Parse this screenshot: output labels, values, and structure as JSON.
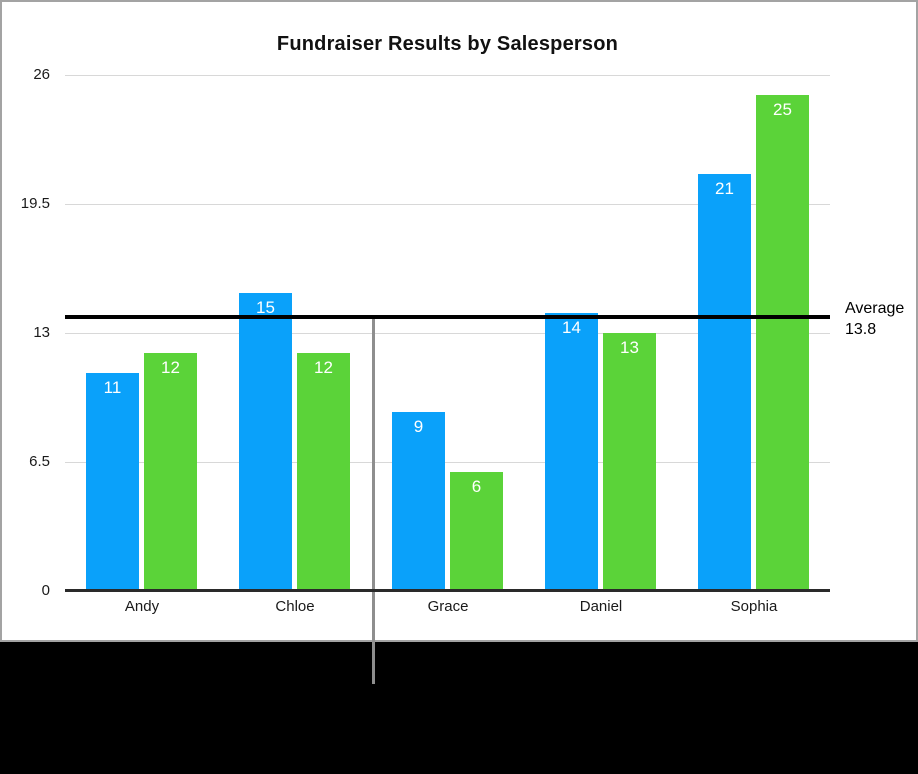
{
  "window": {
    "background_color": "#000000",
    "card_background": "#ffffff",
    "card_border_color": "#a3a3a3"
  },
  "chart_data": {
    "type": "bar",
    "title": "Fundraiser Results by Salesperson",
    "categories": [
      "Andy",
      "Chloe",
      "Grace",
      "Daniel",
      "Sophia"
    ],
    "series": [
      {
        "id": "blue",
        "color": "#0aa1fa",
        "values": [
          11,
          15,
          9,
          14,
          21
        ]
      },
      {
        "id": "green",
        "color": "#5bd339",
        "values": [
          12,
          12,
          6,
          13,
          25
        ]
      }
    ],
    "ylim": [
      0,
      26
    ],
    "yticks": [
      {
        "value": 0,
        "label": "0"
      },
      {
        "value": 6.5,
        "label": "6.5"
      },
      {
        "value": 13,
        "label": "13"
      },
      {
        "value": 19.5,
        "label": "19.5"
      },
      {
        "value": 26,
        "label": "26"
      }
    ],
    "grid": true,
    "legend": "none",
    "value_labels": {
      "position": "inside-top",
      "color": "#ffffff"
    },
    "average_line": {
      "value": 13.8,
      "label_title": "Average",
      "label_value": "13.8",
      "color": "#000000"
    },
    "gridline_color": "#d8d8d8",
    "axis_color": "#2a2a2a",
    "tick_label_color": "#1a1a1a"
  },
  "pointer_line": {
    "color": "#8e8e8e"
  }
}
